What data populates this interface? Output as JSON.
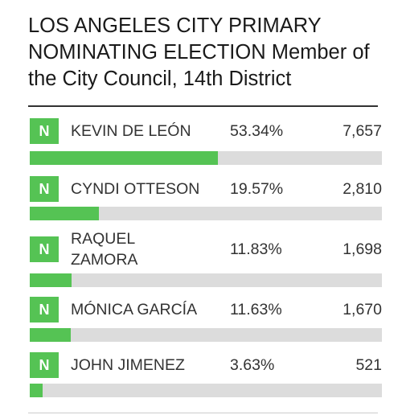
{
  "title": "LOS ANGELES CITY PRIMARY NOMINATING ELECTION Member of the City Council, 14th District",
  "colors": {
    "badge": "#55c354",
    "bar_fill": "#55c354",
    "bar_track": "#dcdcdc",
    "text": "#333333"
  },
  "candidates": [
    {
      "badge": "N",
      "name": "KEVIN DE LEÓN",
      "percent": "53.34%",
      "votes": "7,657",
      "share": 0.5334
    },
    {
      "badge": "N",
      "name": "CYNDI OTTESON",
      "percent": "19.57%",
      "votes": "2,810",
      "share": 0.1957
    },
    {
      "badge": "N",
      "name": "RAQUEL ZAMORA",
      "percent": "11.83%",
      "votes": "1,698",
      "share": 0.1183
    },
    {
      "badge": "N",
      "name": "MÓNICA GARCÍA",
      "percent": "11.63%",
      "votes": "1,670",
      "share": 0.1163
    },
    {
      "badge": "N",
      "name": "JOHN JIMENEZ",
      "percent": "3.63%",
      "votes": "521",
      "share": 0.0363
    }
  ]
}
